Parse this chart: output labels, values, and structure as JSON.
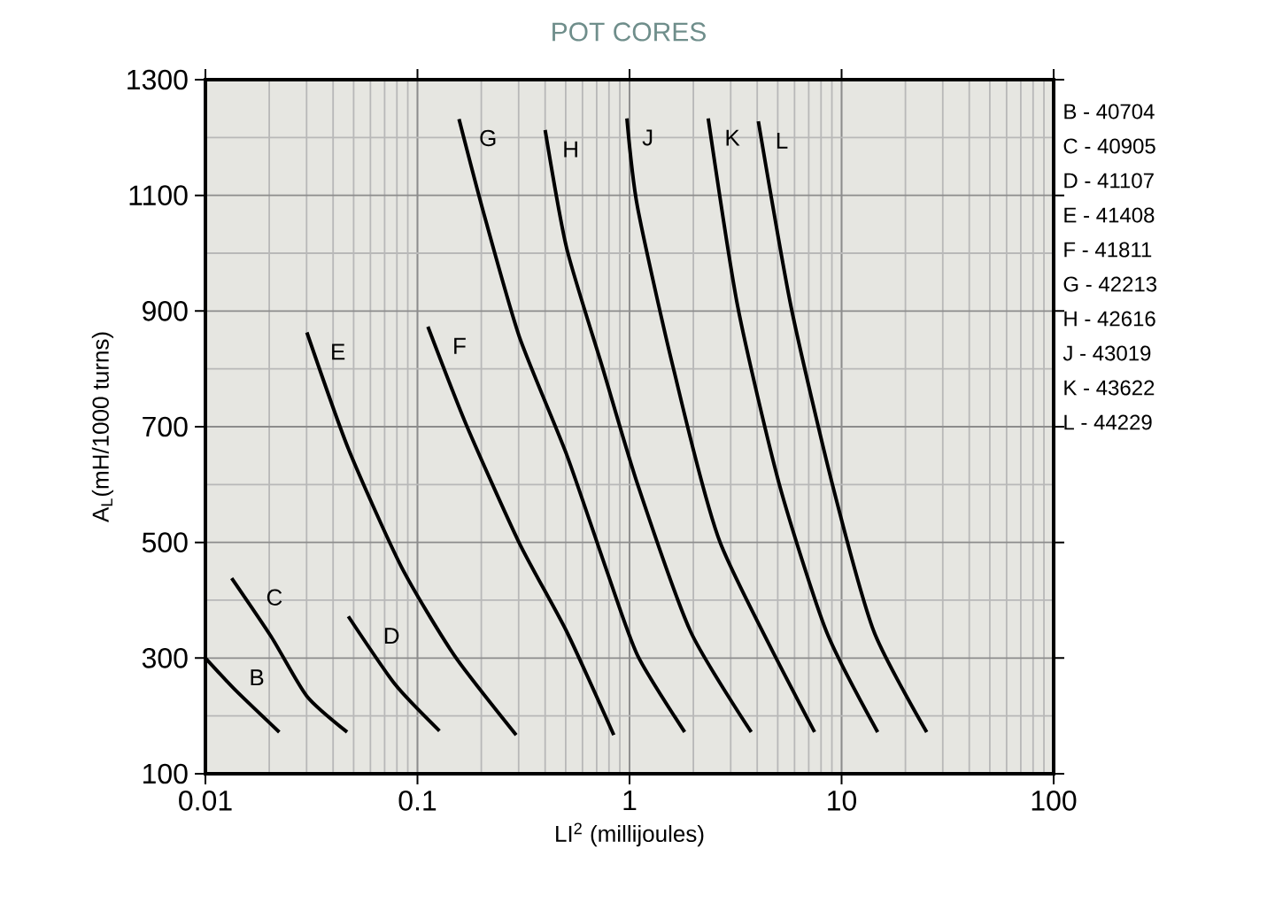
{
  "chart_data": {
    "type": "line",
    "title": "POT CORES",
    "xlabel": "LI$^{2}$ (millijoules)",
    "ylabel": "A$_{L}$(mH/1000 turns)",
    "log": "x",
    "grid": true,
    "legend": false,
    "marker": "none",
    "line_style": "solid",
    "xlim": [
      0.01,
      100
    ],
    "xticks": [
      0.01,
      0.1,
      1,
      10,
      100
    ],
    "ylim": [
      100,
      1300
    ],
    "yticks": [
      100,
      300,
      500,
      700,
      900,
      1100,
      1300
    ],
    "series": [
      {
        "name": "B",
        "color": "#000000",
        "x": [
          0.01,
          0.0139,
          0.0223
        ],
        "values": [
          300,
          244,
          172
        ]
      },
      {
        "name": "C",
        "color": "#000000",
        "x": [
          0.0133,
          0.0205,
          0.0301,
          0.0466
        ],
        "values": [
          438,
          336,
          234,
          172
        ]
      },
      {
        "name": "D",
        "color": "#000000",
        "x": [
          0.0472,
          0.0786,
          0.127
        ],
        "values": [
          372,
          254,
          174
        ]
      },
      {
        "name": "E",
        "color": "#000000",
        "x": [
          0.0301,
          0.0472,
          0.0839,
          0.149,
          0.292
        ],
        "values": [
          863,
          662,
          458,
          305,
          167
        ]
      },
      {
        "name": "F",
        "color": "#000000",
        "x": [
          0.112,
          0.17,
          0.302,
          0.505,
          0.843
        ],
        "values": [
          873,
          703,
          499,
          346,
          167
        ]
      },
      {
        "name": "G",
        "color": "#000000",
        "x": [
          0.157,
          0.205,
          0.302,
          0.505,
          0.786,
          1.09,
          1.82
        ],
        "values": [
          1232,
          1070,
          856,
          652,
          448,
          305,
          172
        ]
      },
      {
        "name": "H",
        "color": "#000000",
        "x": [
          0.4,
          0.505,
          0.742,
          1.09,
          1.94,
          3.75
        ],
        "values": [
          1213,
          1009,
          805,
          601,
          346,
          172
        ]
      },
      {
        "name": "J",
        "color": "#000000",
        "x": [
          0.972,
          1.09,
          1.6,
          2.68,
          7.46
        ],
        "values": [
          1233,
          1080,
          805,
          499,
          172
        ]
      },
      {
        "name": "K",
        "color": "#000000",
        "x": [
          2.35,
          3.24,
          5.08,
          8.48,
          14.8
        ],
        "values": [
          1233,
          907,
          601,
          346,
          172
        ]
      },
      {
        "name": "L",
        "color": "#000000",
        "x": [
          4.05,
          5.78,
          9.04,
          14.2,
          25.2
        ],
        "values": [
          1228,
          907,
          601,
          346,
          172
        ]
      }
    ],
    "annotations": [
      "B - 40704",
      "C - 40905",
      "D - 41107",
      "E - 41408",
      "F - 41811",
      "G - 42213",
      "H - 42616",
      "J - 43019",
      "K - 43622",
      "L - 44229"
    ]
  }
}
